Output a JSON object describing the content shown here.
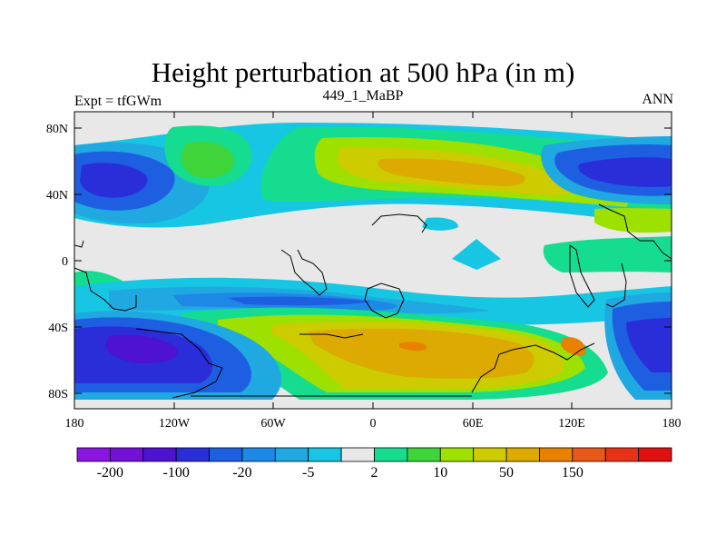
{
  "title": "Height perturbation at 500 hPa (in m)",
  "left_label": "Expt = tfGWm",
  "center_label": "449_1_MaBP",
  "right_label": "ANN",
  "lat_ticks": [
    "80N",
    "40N",
    "0",
    "40S",
    "80S"
  ],
  "lon_ticks": [
    "180",
    "120W",
    "60W",
    "0",
    "60E",
    "120E",
    "180"
  ],
  "colorbar": {
    "colors": [
      "#8a14e0",
      "#7310d8",
      "#4e12d2",
      "#2a2ed8",
      "#1e5fe2",
      "#1e88e6",
      "#20a8e0",
      "#16c6e2",
      "#e8e8e8",
      "#16dc90",
      "#3ed43a",
      "#9ee000",
      "#cccc00",
      "#dcaa00",
      "#e88000",
      "#e85818",
      "#e83218",
      "#e01010"
    ],
    "labels": [
      "-200",
      "-100",
      "-20",
      "-5",
      "2",
      "10",
      "50",
      "150"
    ]
  },
  "colors": {
    "land_outline": "#000000",
    "background": "#e8e8e8"
  }
}
